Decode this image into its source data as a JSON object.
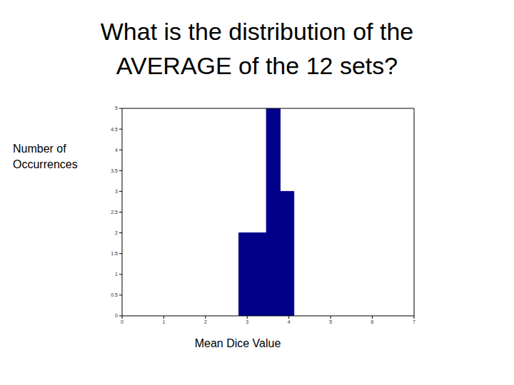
{
  "chart_data": {
    "type": "histogram",
    "title": "What is the distribution of the AVERAGE of the 12 sets?",
    "x_label": "Mean Dice Value",
    "y_label": "Number of Occurrences",
    "bins": [
      2.8,
      3.13,
      3.46,
      3.79,
      4.12
    ],
    "values": [
      2,
      2,
      5,
      3
    ],
    "color": "#00008b",
    "xlim": [
      0,
      7
    ],
    "xticks": [
      0,
      1,
      2,
      3,
      4,
      5,
      6,
      7
    ],
    "ylim": [
      0,
      5
    ],
    "yticks": [
      0,
      0.5,
      1,
      1.5,
      2,
      2.5,
      3,
      3.5,
      4,
      4.5,
      5
    ],
    "grid": false
  }
}
